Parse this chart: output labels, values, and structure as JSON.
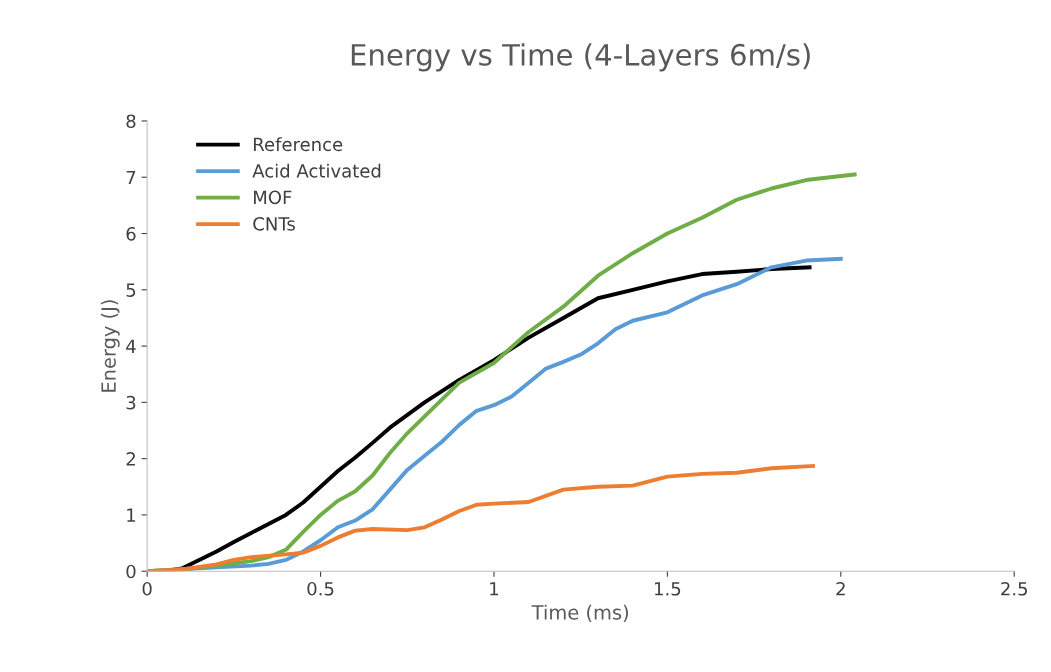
{
  "chart_data": {
    "type": "line",
    "title": "Energy vs Time (4-Layers 6m/s)",
    "xlabel": "Time (ms)",
    "ylabel": "Energy (J)",
    "xlim": [
      0,
      2.5
    ],
    "xticks": [
      0,
      0.5,
      1,
      1.5,
      2,
      2.5
    ],
    "ylim": [
      0,
      8
    ],
    "yticks": [
      0,
      1,
      2,
      3,
      4,
      5,
      6,
      7,
      8
    ],
    "grid": false,
    "legend": "top left",
    "marker": "none",
    "line_style": "solid",
    "series": [
      {
        "name": "Reference",
        "color": "#000000",
        "x": [
          0,
          0.05,
          0.1,
          0.15,
          0.2,
          0.25,
          0.3,
          0.35,
          0.4,
          0.45,
          0.5,
          0.55,
          0.6,
          0.65,
          0.7,
          0.8,
          0.9,
          1.0,
          1.1,
          1.2,
          1.3,
          1.4,
          1.5,
          1.6,
          1.7,
          1.8,
          1.91
        ],
        "values": [
          0,
          0,
          0.05,
          0.2,
          0.35,
          0.52,
          0.68,
          0.84,
          1.0,
          1.22,
          1.5,
          1.78,
          2.02,
          2.28,
          2.55,
          3.0,
          3.4,
          3.75,
          4.15,
          4.5,
          4.85,
          5.0,
          5.15,
          5.28,
          5.32,
          5.37,
          5.4
        ]
      },
      {
        "name": "Acid Activated",
        "color": "#5b9bd5",
        "x": [
          0,
          0.2,
          0.3,
          0.35,
          0.4,
          0.45,
          0.5,
          0.55,
          0.6,
          0.65,
          0.7,
          0.75,
          0.8,
          0.85,
          0.9,
          0.95,
          1.0,
          1.05,
          1.1,
          1.15,
          1.2,
          1.25,
          1.3,
          1.35,
          1.4,
          1.5,
          1.6,
          1.7,
          1.8,
          1.9,
          2.0
        ],
        "values": [
          0,
          0.07,
          0.1,
          0.13,
          0.2,
          0.35,
          0.55,
          0.78,
          0.9,
          1.1,
          1.45,
          1.8,
          2.05,
          2.3,
          2.6,
          2.85,
          2.95,
          3.1,
          3.35,
          3.6,
          3.72,
          3.85,
          4.05,
          4.3,
          4.45,
          4.6,
          4.9,
          5.1,
          5.4,
          5.52,
          5.55
        ]
      },
      {
        "name": "MOF",
        "color": "#70ad47",
        "x": [
          0,
          0.1,
          0.2,
          0.3,
          0.35,
          0.4,
          0.45,
          0.5,
          0.55,
          0.6,
          0.65,
          0.7,
          0.75,
          0.8,
          0.9,
          1.0,
          1.1,
          1.2,
          1.3,
          1.4,
          1.5,
          1.6,
          1.7,
          1.8,
          1.9,
          2.04
        ],
        "values": [
          0,
          0.03,
          0.1,
          0.18,
          0.25,
          0.38,
          0.7,
          1.0,
          1.25,
          1.42,
          1.7,
          2.1,
          2.45,
          2.75,
          3.35,
          3.7,
          4.25,
          4.7,
          5.25,
          5.65,
          6.0,
          6.28,
          6.6,
          6.8,
          6.95,
          7.05
        ]
      },
      {
        "name": "CNTs",
        "color": "#ed7d31",
        "x": [
          0,
          0.1,
          0.2,
          0.25,
          0.3,
          0.4,
          0.45,
          0.5,
          0.55,
          0.6,
          0.65,
          0.75,
          0.8,
          0.85,
          0.9,
          0.95,
          1.0,
          1.1,
          1.2,
          1.3,
          1.4,
          1.5,
          1.6,
          1.7,
          1.8,
          1.92
        ],
        "values": [
          0,
          0.03,
          0.12,
          0.2,
          0.25,
          0.3,
          0.33,
          0.45,
          0.6,
          0.72,
          0.75,
          0.73,
          0.78,
          0.92,
          1.07,
          1.18,
          1.2,
          1.23,
          1.45,
          1.5,
          1.52,
          1.68,
          1.73,
          1.75,
          1.83,
          1.87
        ]
      }
    ]
  }
}
